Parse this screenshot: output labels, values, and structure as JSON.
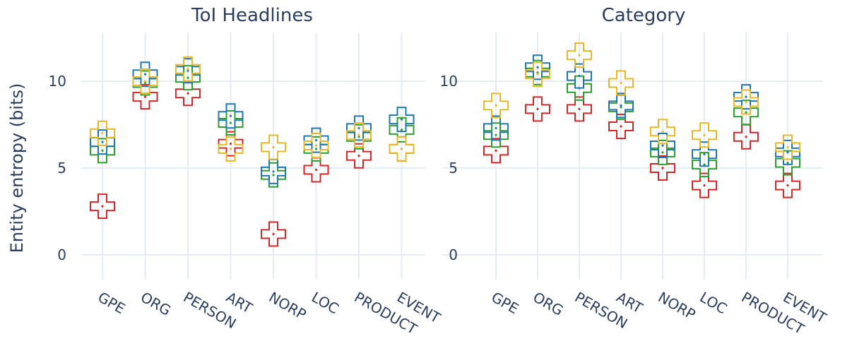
{
  "y_axis_label": "Entity entropy (bits)",
  "colors": {
    "red": "#d62728",
    "green": "#2ca02c",
    "blue": "#1f77b4",
    "yellow": "#e8b923",
    "grid": "#e5ecf6",
    "text": "#2a3f5f"
  },
  "chart_data": [
    {
      "type": "scatter",
      "marker": "cross-open",
      "title": "ToI Headlines",
      "categories": [
        "GPE",
        "ORG",
        "PERSON",
        "ART",
        "NORP",
        "LOC",
        "PRODUCT",
        "EVENT"
      ],
      "yticks": [
        0,
        5,
        10
      ],
      "ylim": [
        -1.3,
        12.8
      ],
      "ylabel": "Entity entropy (bits)",
      "grid": true,
      "series": [
        {
          "color": "red",
          "values": [
            2.8,
            9.1,
            9.3,
            6.4,
            1.2,
            4.9,
            5.7,
            6.1
          ]
        },
        {
          "color": "green",
          "values": [
            6.0,
            9.9,
            10.2,
            7.6,
            4.6,
            6.1,
            6.8,
            7.2
          ]
        },
        {
          "color": "blue",
          "values": [
            6.5,
            10.4,
            10.6,
            8.0,
            4.8,
            6.6,
            7.3,
            7.8
          ]
        },
        {
          "color": "yellow",
          "values": [
            7.0,
            10.0,
            10.7,
            6.1,
            6.2,
            6.3,
            6.9,
            6.1
          ]
        }
      ]
    },
    {
      "type": "scatter",
      "marker": "cross-open",
      "title": "Category",
      "categories": [
        "GPE",
        "ORG",
        "PERSON",
        "ART",
        "NORP",
        "LOC",
        "PRODUCT",
        "EVENT"
      ],
      "yticks": [
        0,
        5,
        10
      ],
      "ylim": [
        -1.3,
        12.8
      ],
      "grid": true,
      "series": [
        {
          "color": "red",
          "values": [
            6.0,
            8.4,
            8.4,
            7.4,
            5.0,
            4.0,
            6.8,
            4.0
          ]
        },
        {
          "color": "green",
          "values": [
            6.9,
            10.5,
            9.6,
            8.5,
            5.9,
            5.2,
            8.2,
            5.3
          ]
        },
        {
          "color": "blue",
          "values": [
            7.3,
            10.8,
            10.3,
            8.6,
            6.3,
            5.8,
            9.1,
            5.9
          ]
        },
        {
          "color": "yellow",
          "values": [
            8.6,
            10.4,
            11.5,
            9.9,
            7.1,
            6.9,
            8.8,
            6.2
          ]
        }
      ]
    }
  ]
}
